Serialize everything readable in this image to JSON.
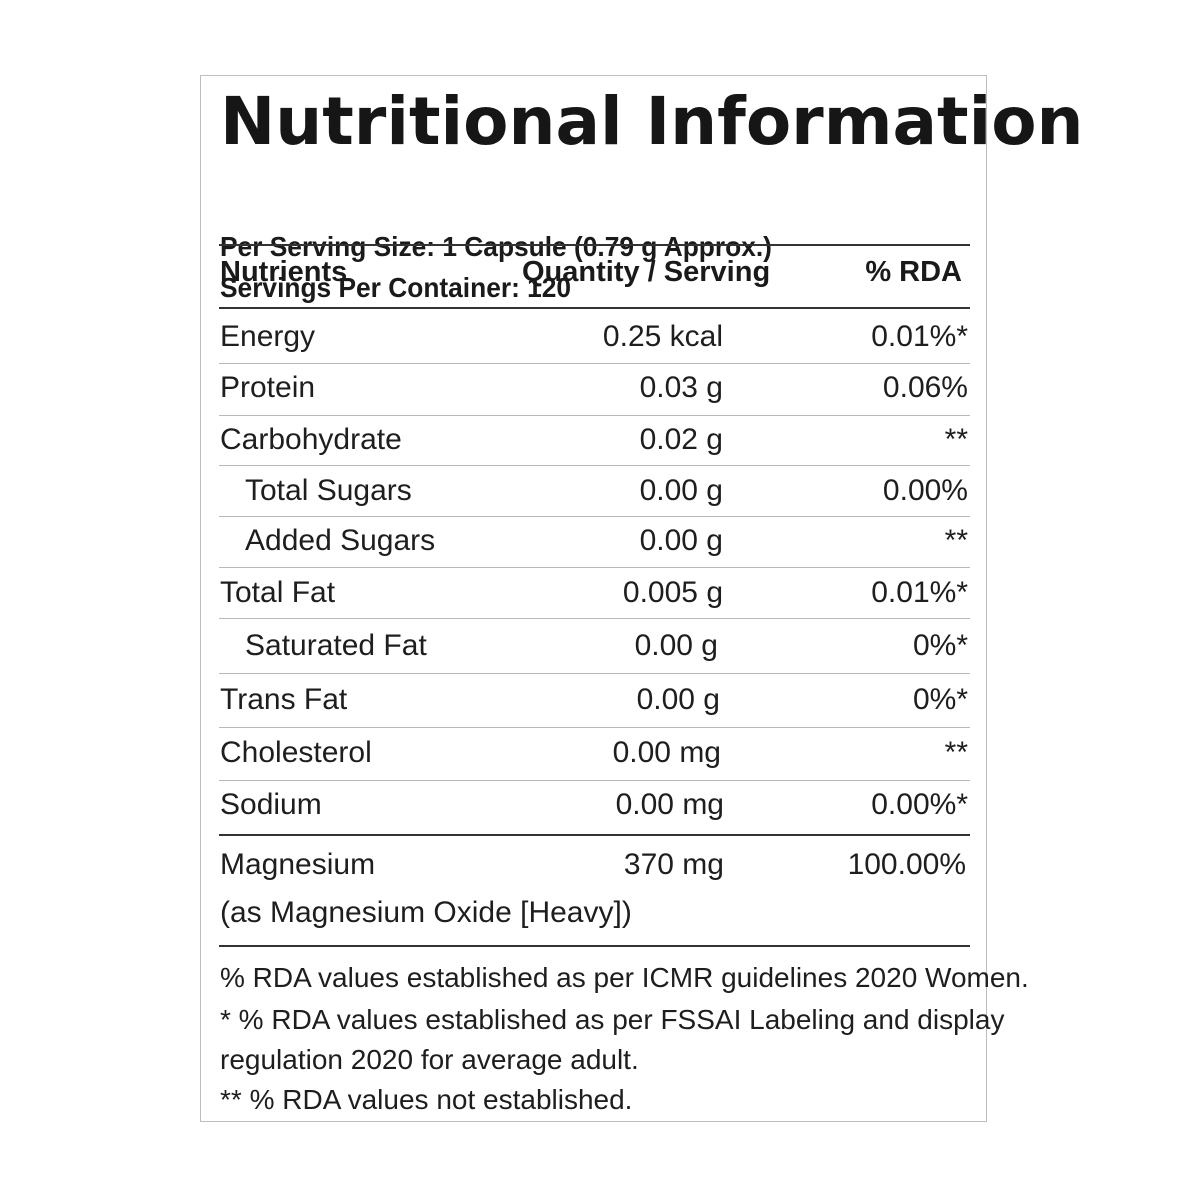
{
  "label": {
    "title": "Nutritional Information",
    "serving_size": "Per Serving Size: 1 Capsule (0.79 g Approx.)",
    "servings_per_container": "Servings Per Container: 120"
  },
  "table": {
    "headers": {
      "nutrient": "Nutrients",
      "quantity": "Quantity / Serving",
      "rda": "% RDA"
    },
    "rows": [
      {
        "name": "Energy",
        "quantity": "0.25 kcal",
        "rda": "0.01%*"
      },
      {
        "name": "Protein",
        "quantity": "0.03 g",
        "rda": "0.06%"
      },
      {
        "name": "Carbohydrate",
        "quantity": "0.02 g",
        "rda": "**"
      },
      {
        "name": "Total Sugars",
        "quantity": "0.00 g",
        "rda": "0.00%"
      },
      {
        "name": "Added Sugars",
        "quantity": "0.00 g",
        "rda": "**"
      },
      {
        "name": "Total Fat",
        "quantity": "0.005 g",
        "rda": "0.01%*"
      },
      {
        "name": "Saturated Fat",
        "quantity": "0.00 g",
        "rda": "0%*"
      },
      {
        "name": "Trans Fat",
        "quantity": "0.00 g",
        "rda": "0%*"
      },
      {
        "name": "Cholesterol",
        "quantity": "0.00 mg",
        "rda": "**"
      },
      {
        "name": "Sodium",
        "quantity": "0.00 mg",
        "rda": "0.00%*"
      },
      {
        "name": "Magnesium",
        "quantity": "370 mg",
        "rda": "100.00%",
        "detail": "(as Magnesium Oxide [Heavy])"
      }
    ]
  },
  "footnotes": [
    "% RDA values established as per ICMR guidelines 2020 Women.",
    "* % RDA values established as per FSSAI Labeling and display",
    "regulation 2020 for average adult.",
    "** % RDA values not established."
  ]
}
